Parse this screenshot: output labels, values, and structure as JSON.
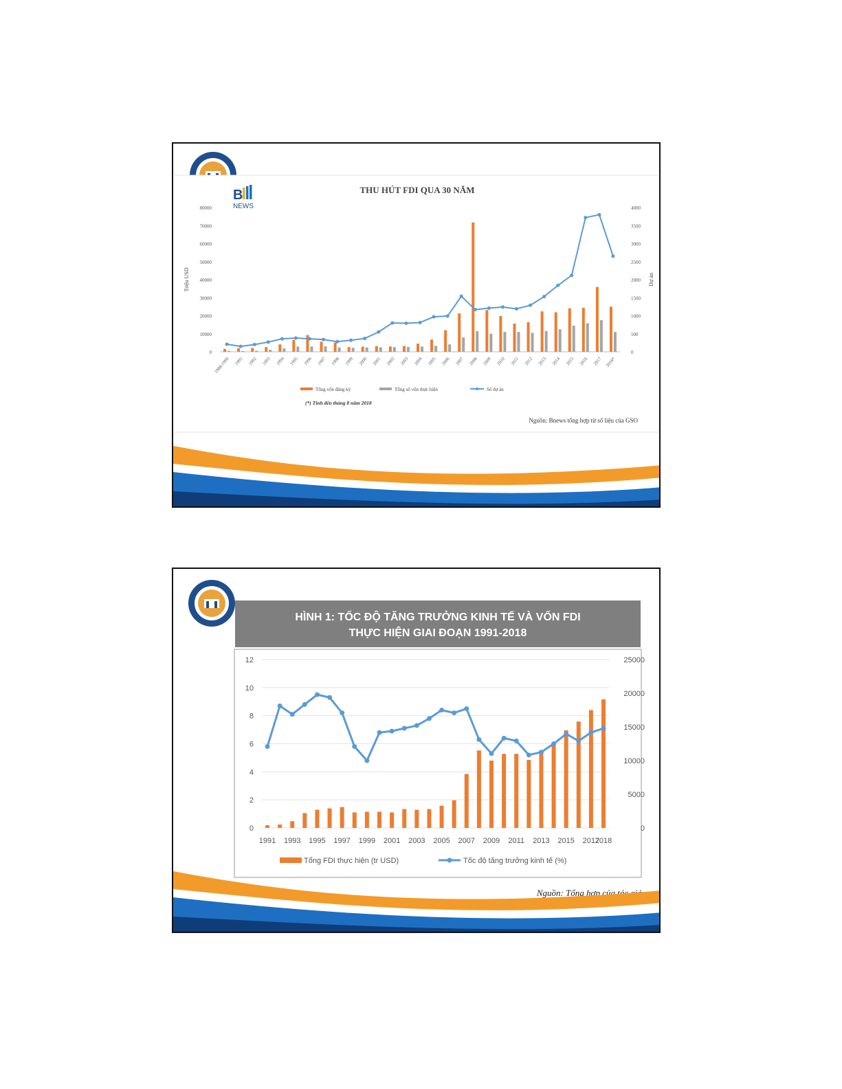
{
  "colors": {
    "orange": "#ED7D31",
    "gray": "#A5A5A5",
    "blue": "#5B9BD5",
    "banner": "#7F7F7F",
    "navy": "#1F4E8C",
    "gold": "#E8A33D"
  },
  "slides": [
    {
      "logo": {
        "icon": "university-seal-icon"
      },
      "brand_logo": {
        "letter": "B",
        "text": "NEWS"
      },
      "chart_data": {
        "type": "bar",
        "title": "THU HÚT FDI QUA 30 NĂM",
        "ylabel": "Triệu USD",
        "y2label": "Dự án",
        "ylim": [
          0,
          80000
        ],
        "y2lim": [
          0,
          4000
        ],
        "yticks": [
          0,
          10000,
          20000,
          30000,
          40000,
          50000,
          60000,
          70000,
          80000
        ],
        "y2ticks": [
          0,
          500,
          1000,
          1500,
          2000,
          2500,
          3000,
          3500,
          4000
        ],
        "categories": [
          "1988-1990",
          "1991",
          "1992",
          "1993",
          "1994",
          "1995",
          "1996",
          "1997",
          "1998",
          "1999",
          "2000",
          "2001",
          "2002",
          "2003",
          "2004",
          "2005",
          "2006",
          "2007",
          "2008",
          "2009",
          "2010",
          "2011",
          "2012",
          "2013",
          "2014",
          "2015",
          "2016",
          "2017",
          "2018*"
        ],
        "series": [
          {
            "name": "Tổng vốn đăng ký",
            "kind": "bar",
            "axis": "left",
            "color": "#ED7D31",
            "values": [
              1600,
              2000,
              2100,
              2600,
              4100,
              6600,
              9300,
              5600,
              5100,
              2600,
              2800,
              3100,
              2900,
              3200,
              4500,
              6800,
              12000,
              21300,
              71700,
              23100,
              19800,
              15600,
              16400,
              22400,
              21900,
              24100,
              24400,
              35900,
              25000
            ]
          },
          {
            "name": "Tổng số vốn thực hiện",
            "kind": "bar",
            "axis": "left",
            "color": "#A5A5A5",
            "values": [
              500,
              400,
              600,
              1100,
              1900,
              2900,
              2900,
              3000,
              2400,
              2200,
              2400,
              2500,
              2600,
              2700,
              2900,
              3300,
              4100,
              8000,
              11500,
              10000,
              11000,
              11000,
              10500,
              11500,
              12500,
              14500,
              15800,
              17500,
              11000
            ]
          },
          {
            "name": "Số dự án",
            "kind": "line",
            "axis": "right",
            "color": "#5B9BD5",
            "values": [
              210,
              150,
              200,
              270,
              360,
              380,
              360,
              340,
              280,
              320,
              370,
              550,
              800,
              790,
              810,
              970,
              990,
              1540,
              1170,
              1210,
              1240,
              1190,
              1290,
              1530,
              1840,
              2120,
              3720,
              3800,
              2650
            ]
          }
        ],
        "note": "(*) Tính đến tháng 8 năm 2018",
        "source": "Nguồn: Bnews tổng hợp từ số liệu của GSO",
        "legend": "bottom"
      }
    },
    {
      "logo": {
        "icon": "university-seal-icon"
      },
      "chart_data": {
        "type": "bar",
        "title_line1": "HÌNH 1: TỐC ĐỘ TĂNG TRƯỞNG KINH TẾ VÀ VỐN FDI",
        "title_line2": "THỰC HIỆN GIAI ĐOẠN 1991-2018",
        "ylim": [
          0,
          12
        ],
        "y2lim": [
          0,
          25000
        ],
        "yticks": [
          0,
          2,
          4,
          6,
          8,
          10,
          12
        ],
        "y2ticks": [
          0,
          5000,
          10000,
          15000,
          20000,
          25000
        ],
        "categories": [
          "1991",
          "1992",
          "1993",
          "1994",
          "1995",
          "1996",
          "1997",
          "1998",
          "1999",
          "2000",
          "2001",
          "2002",
          "2003",
          "2004",
          "2005",
          "2006",
          "2007",
          "2008",
          "2009",
          "2010",
          "2011",
          "2012",
          "2013",
          "2014",
          "2015",
          "2016",
          "2017",
          "2018"
        ],
        "xtick_labels": [
          "1991",
          "1993",
          "1995",
          "1997",
          "1999",
          "2001",
          "2003",
          "2005",
          "2007",
          "2009",
          "2011",
          "2013",
          "2015",
          "2017",
          "2018"
        ],
        "series": [
          {
            "name": "Tổng FDI thực hiện (tr USD)",
            "kind": "bar",
            "axis": "right",
            "color": "#ED7D31",
            "values": [
              400,
              500,
              1000,
              2200,
              2700,
              2900,
              3100,
              2300,
              2400,
              2400,
              2300,
              2800,
              2700,
              2800,
              3300,
              4100,
              8000,
              11500,
              10000,
              11000,
              11000,
              10100,
              11500,
              12500,
              14500,
              15800,
              17500,
              19100
            ]
          },
          {
            "name": "Tốc độ tăng trưởng kinh tế (%)",
            "kind": "line",
            "axis": "left",
            "color": "#5B9BD5",
            "values": [
              5.8,
              8.7,
              8.1,
              8.8,
              9.5,
              9.3,
              8.2,
              5.8,
              4.8,
              6.8,
              6.9,
              7.1,
              7.3,
              7.8,
              8.4,
              8.2,
              8.5,
              6.3,
              5.3,
              6.4,
              6.2,
              5.2,
              5.4,
              6.0,
              6.7,
              6.2,
              6.8,
              7.1
            ]
          }
        ],
        "legend": "bottom",
        "source": "Nguồn: Tổng hợp của tác giả"
      }
    }
  ]
}
